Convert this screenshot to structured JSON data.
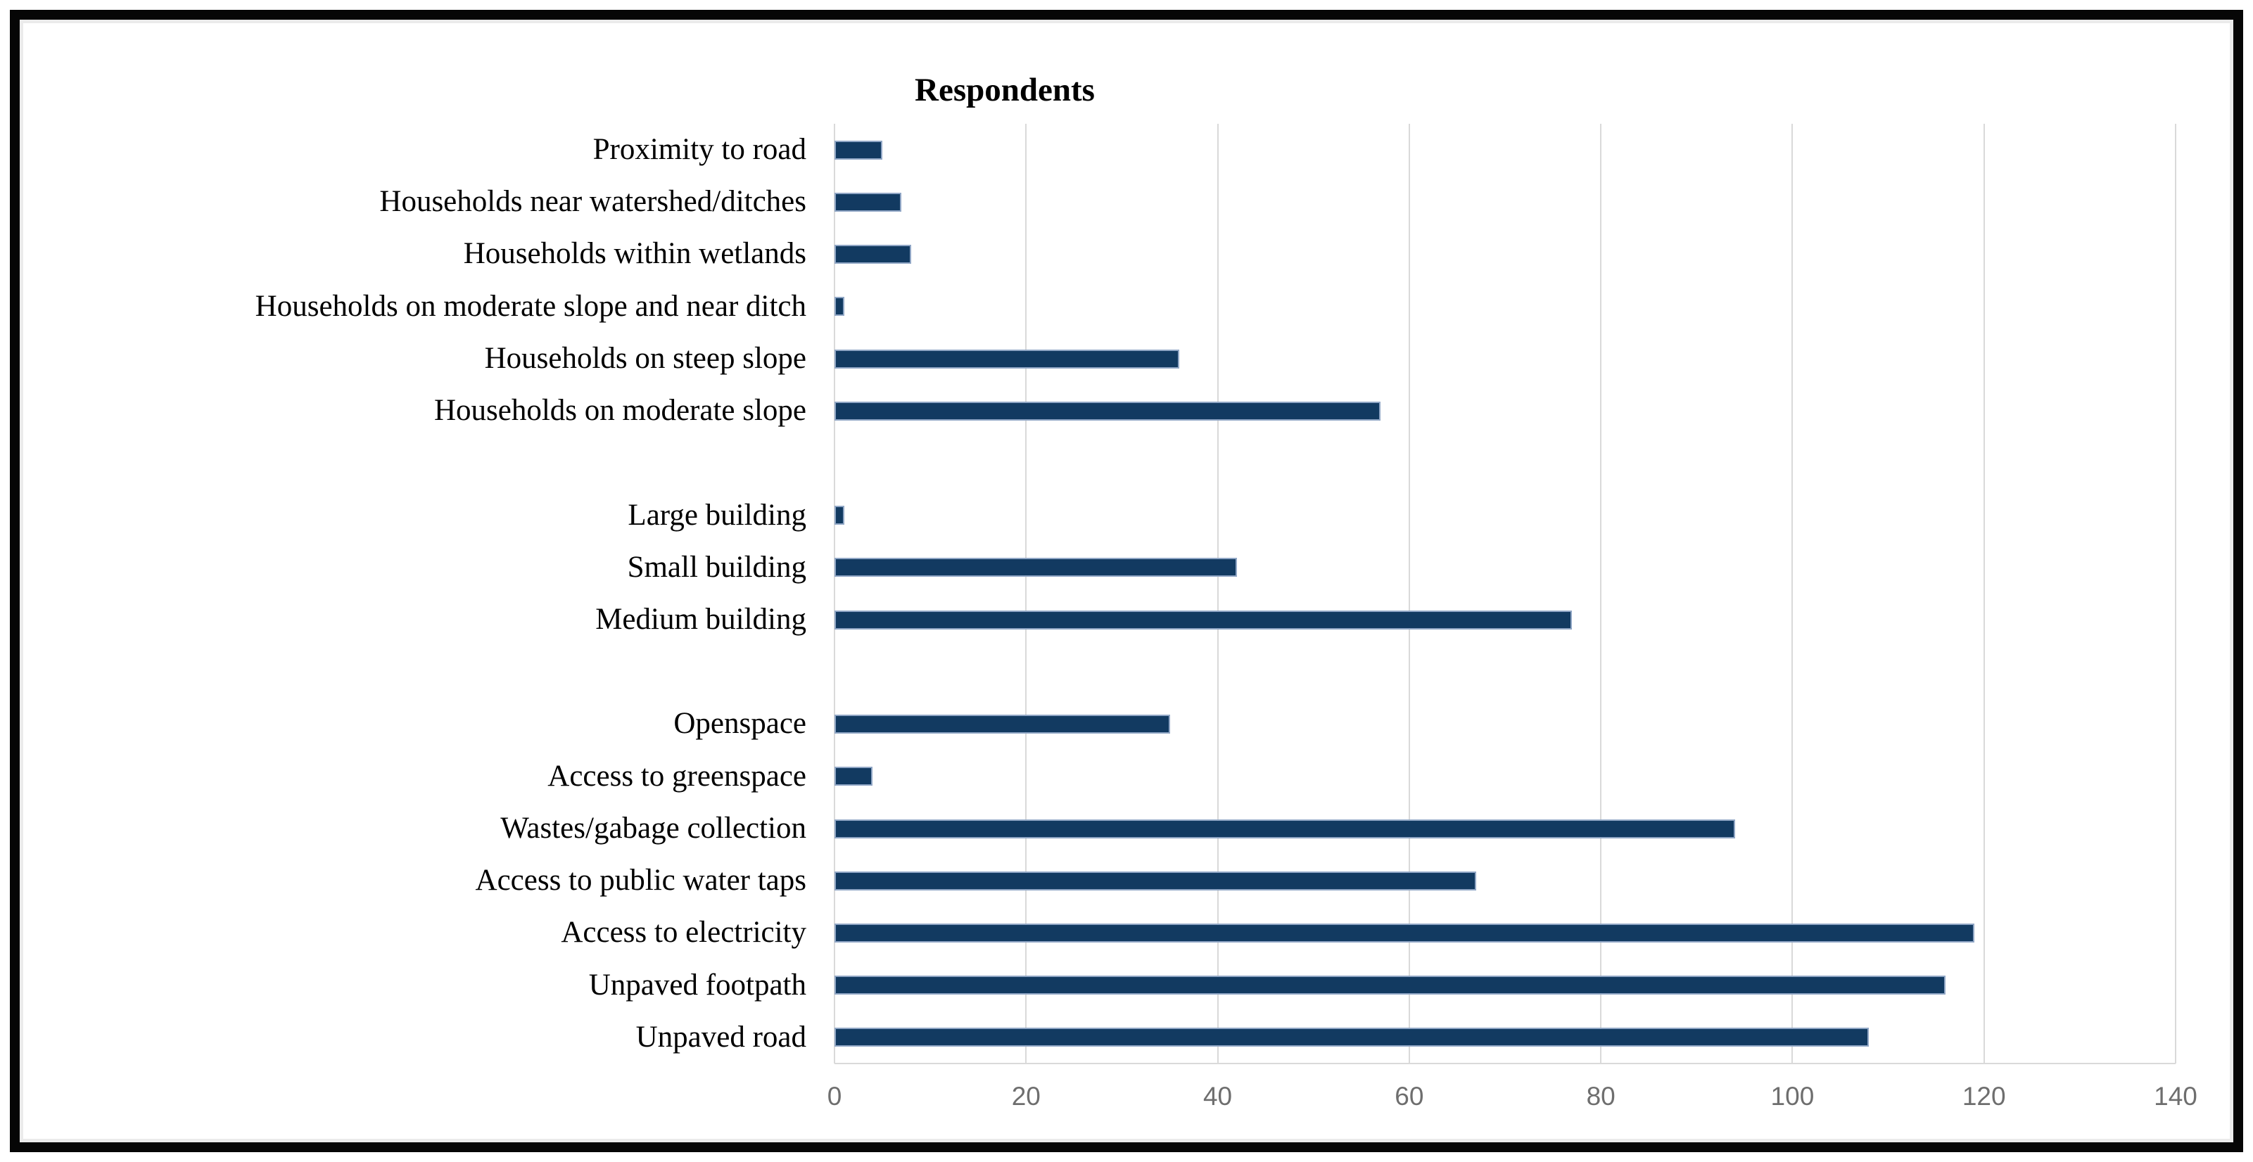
{
  "figure": {
    "title": "Respondents",
    "colors": {
      "bar_fill": "#123a61",
      "bar_edge": "#90a6c5",
      "gridline": "#d9d9d9",
      "axis_line": "#d9d9d9",
      "tick_label_color": "#6e6e6e",
      "text_color": "#000000",
      "frame_color": "#060606",
      "background": "#ffffff"
    }
  },
  "chart_data": {
    "type": "bar",
    "orientation": "horizontal",
    "title": "Respondents",
    "xlabel": "",
    "ylabel": "",
    "xlim": [
      0,
      140
    ],
    "xticks": [
      0,
      20,
      40,
      60,
      80,
      100,
      120,
      140
    ],
    "tick_labels": [
      "0",
      "20",
      "40",
      "60",
      "80",
      "100",
      "120",
      "140"
    ],
    "grid": "vertical-only",
    "legend": "none",
    "rows_top_to_bottom": [
      {
        "label": "Proximity to road",
        "value": 5
      },
      {
        "label": "Households near watershed/ditches",
        "value": 7
      },
      {
        "label": "Households within wetlands",
        "value": 8
      },
      {
        "label": "Households on moderate slope and near ditch",
        "value": 1
      },
      {
        "label": "Households on steep slope",
        "value": 36
      },
      {
        "label": "Households on moderate slope",
        "value": 57
      },
      {
        "label": "",
        "value": null,
        "spacer": true
      },
      {
        "label": "Large building",
        "value": 1
      },
      {
        "label": "Small building",
        "value": 42
      },
      {
        "label": "Medium building",
        "value": 77
      },
      {
        "label": "",
        "value": null,
        "spacer": true
      },
      {
        "label": "Openspace",
        "value": 35
      },
      {
        "label": "Access to greenspace",
        "value": 4
      },
      {
        "label": "Wastes/gabage collection",
        "value": 94
      },
      {
        "label": "Access to public water taps",
        "value": 67
      },
      {
        "label": "Access to electricity",
        "value": 119
      },
      {
        "label": "Unpaved footpath",
        "value": 116
      },
      {
        "label": "Unpaved road",
        "value": 108
      }
    ]
  }
}
